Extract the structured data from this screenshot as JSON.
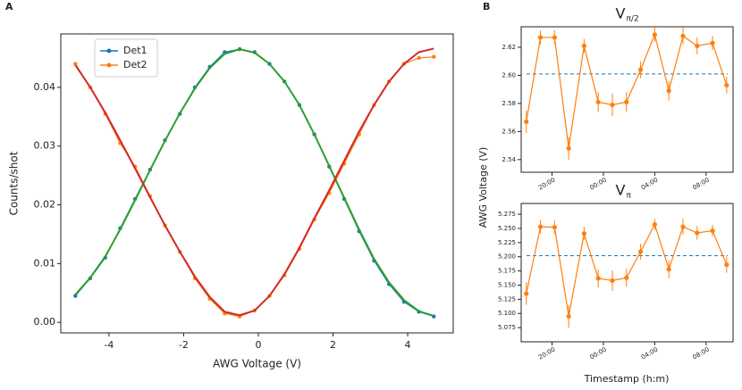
{
  "panel_labels": [
    "A",
    "B"
  ],
  "shared_ylabel": "AWG Voltage (V)",
  "shared_xlabel": "Timestamp (h:m)",
  "chart_data": [
    {
      "type": "line",
      "xlabel": "AWG Voltage (V)",
      "ylabel": "Counts/shot",
      "x": [
        -4.9,
        -4.5,
        -4.1,
        -3.7,
        -3.3,
        -2.9,
        -2.5,
        -2.1,
        -1.7,
        -1.3,
        -0.9,
        -0.5,
        -0.1,
        0.3,
        0.7,
        1.1,
        1.5,
        1.9,
        2.3,
        2.7,
        3.1,
        3.5,
        3.9,
        4.3,
        4.7
      ],
      "xlim": [
        -5.29,
        5.22
      ],
      "xticks": [
        -4,
        -2,
        0,
        2,
        4
      ],
      "ylim": [
        -0.0018,
        0.0491
      ],
      "yticks": [
        {
          "value": 0,
          "label": "0.00"
        },
        {
          "value": 0.01,
          "label": "0.01"
        },
        {
          "value": 0.02,
          "label": "0.02"
        },
        {
          "value": 0.03,
          "label": "0.03"
        },
        {
          "value": 0.04,
          "label": "0.04"
        }
      ],
      "legend": "upper left",
      "series": [
        {
          "name": "Det1",
          "color": "#1f77b4",
          "marker": true,
          "values": [
            0.0045,
            0.0075,
            0.011,
            0.016,
            0.021,
            0.026,
            0.031,
            0.0355,
            0.04,
            0.0435,
            0.046,
            0.0465,
            0.046,
            0.044,
            0.041,
            0.037,
            0.032,
            0.0265,
            0.021,
            0.0155,
            0.0105,
            0.0065,
            0.0035,
            0.0018,
            0.001
          ]
        },
        {
          "name": "Det2",
          "color": "#ff7f0e",
          "marker": true,
          "values": [
            0.044,
            0.04,
            0.0355,
            0.0305,
            0.0265,
            0.0215,
            0.0165,
            0.012,
            0.0075,
            0.004,
            0.0015,
            0.001,
            0.002,
            0.0045,
            0.008,
            0.0125,
            0.0175,
            0.022,
            0.027,
            0.032,
            0.037,
            0.041,
            0.044,
            0.045,
            0.0452
          ]
        },
        {
          "color": "#2ca02c",
          "values": [
            0.0047,
            0.0076,
            0.0112,
            0.0158,
            0.0208,
            0.0259,
            0.0309,
            0.0356,
            0.0398,
            0.0433,
            0.0457,
            0.0465,
            0.0459,
            0.044,
            0.041,
            0.037,
            0.032,
            0.0266,
            0.0212,
            0.0158,
            0.0108,
            0.0068,
            0.0038,
            0.0019,
            0.0011
          ]
        },
        {
          "color": "#d62728",
          "values": [
            0.0438,
            0.04,
            0.0357,
            0.031,
            0.0262,
            0.0213,
            0.0165,
            0.012,
            0.0078,
            0.0043,
            0.0018,
            0.0012,
            0.002,
            0.0045,
            0.0082,
            0.0127,
            0.0177,
            0.0225,
            0.0275,
            0.0325,
            0.037,
            0.041,
            0.044,
            0.046,
            0.0466
          ]
        }
      ]
    },
    {
      "type": "line",
      "title": "V",
      "title_sub": "π/2",
      "x": [
        18.0,
        19.1,
        20.2,
        21.3,
        22.5,
        23.6,
        24.7,
        25.8,
        26.9,
        28.0,
        29.1,
        30.2,
        31.3,
        32.5,
        33.6
      ],
      "xlim": [
        17.6,
        34.1
      ],
      "xticks": [
        {
          "value": 20,
          "label": "20:00"
        },
        {
          "value": 24,
          "label": "00:00"
        },
        {
          "value": 28,
          "label": "04:00"
        },
        {
          "value": 32,
          "label": "08:00"
        }
      ],
      "ylim": [
        2.531,
        2.6346
      ],
      "yticks": [
        2.54,
        2.56,
        2.58,
        {
          "value": 2.6,
          "label": "2.60"
        },
        2.62
      ],
      "hline": {
        "value": 2.601,
        "color": "#1f77b4"
      },
      "series": [
        {
          "color": "#ff7f0e",
          "marker": true,
          "values": [
            2.567,
            2.627,
            2.627,
            2.548,
            2.621,
            2.581,
            2.579,
            2.581,
            2.604,
            2.629,
            2.589,
            2.628,
            2.621,
            2.623,
            2.593
          ],
          "errors": [
            0.008,
            0.005,
            0.005,
            0.008,
            0.005,
            0.007,
            0.008,
            0.007,
            0.006,
            0.005,
            0.007,
            0.006,
            0.006,
            0.005,
            0.006
          ]
        }
      ]
    },
    {
      "type": "line",
      "title": "V",
      "title_sub": "π",
      "x": [
        18.0,
        19.1,
        20.2,
        21.3,
        22.5,
        23.6,
        24.7,
        25.8,
        26.9,
        28.0,
        29.1,
        30.2,
        31.3,
        32.5,
        33.6
      ],
      "xlim": [
        17.6,
        34.1
      ],
      "xticks": [
        {
          "value": 20,
          "label": "20:00"
        },
        {
          "value": 24,
          "label": "00:00"
        },
        {
          "value": 28,
          "label": "04:00"
        },
        {
          "value": 32,
          "label": "08:00"
        }
      ],
      "ylim": [
        5.05,
        5.294
      ],
      "yticks": [
        5.075,
        {
          "value": 5.1,
          "label": "5.100"
        },
        5.125,
        {
          "value": 5.15,
          "label": "5.150"
        },
        5.175,
        {
          "value": 5.2,
          "label": "5.200"
        },
        5.225,
        {
          "value": 5.25,
          "label": "5.250"
        },
        5.275
      ],
      "hline": {
        "value": 5.202,
        "color": "#1f77b4"
      },
      "series": [
        {
          "color": "#ff7f0e",
          "marker": true,
          "values": [
            5.135,
            5.253,
            5.252,
            5.095,
            5.241,
            5.162,
            5.158,
            5.163,
            5.209,
            5.257,
            5.178,
            5.253,
            5.242,
            5.246,
            5.186
          ],
          "errors": [
            0.02,
            0.012,
            0.012,
            0.02,
            0.012,
            0.016,
            0.018,
            0.016,
            0.014,
            0.01,
            0.016,
            0.014,
            0.012,
            0.01,
            0.014
          ]
        }
      ]
    }
  ]
}
